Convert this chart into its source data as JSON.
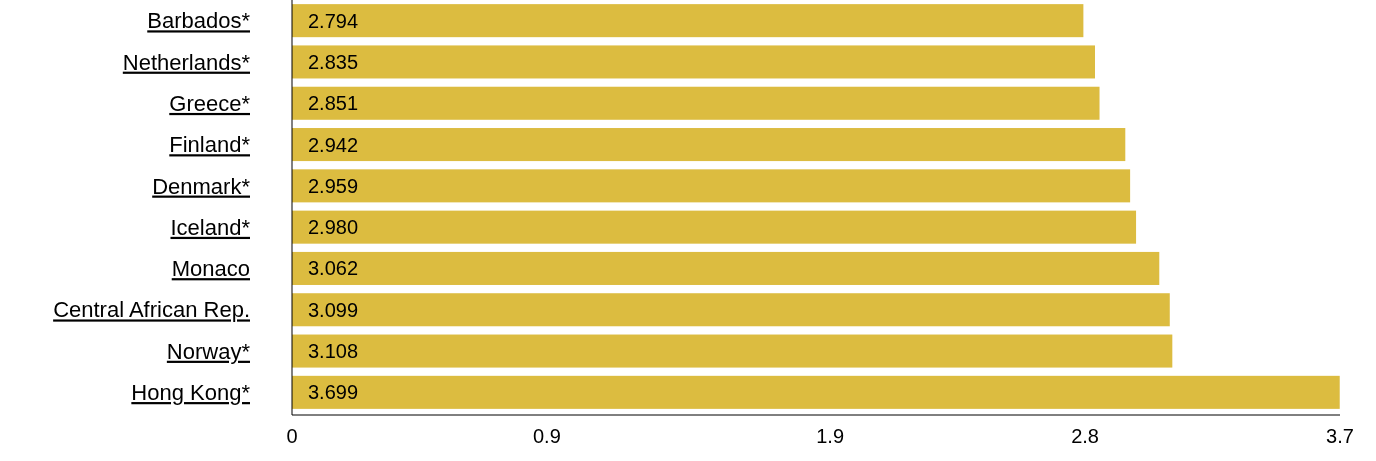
{
  "chart_data": {
    "type": "bar",
    "orientation": "horizontal",
    "categories": [
      "Barbados*",
      "Netherlands*",
      "Greece*",
      "Finland*",
      "Denmark*",
      "Iceland*",
      "Monaco",
      "Central African Rep.",
      "Norway*",
      "Hong Kong*"
    ],
    "values": [
      2.794,
      2.835,
      2.851,
      2.942,
      2.959,
      2.98,
      3.062,
      3.099,
      3.108,
      3.699
    ],
    "color": "#dcbc40",
    "xlim": [
      0,
      3.7
    ],
    "xticks": [
      0,
      0.9,
      1.9,
      2.8,
      3.7
    ],
    "value_labels": [
      "2.794",
      "2.835",
      "2.851",
      "2.942",
      "2.959",
      "2.980",
      "3.062",
      "3.099",
      "3.108",
      "3.699"
    ],
    "grid": false
  }
}
